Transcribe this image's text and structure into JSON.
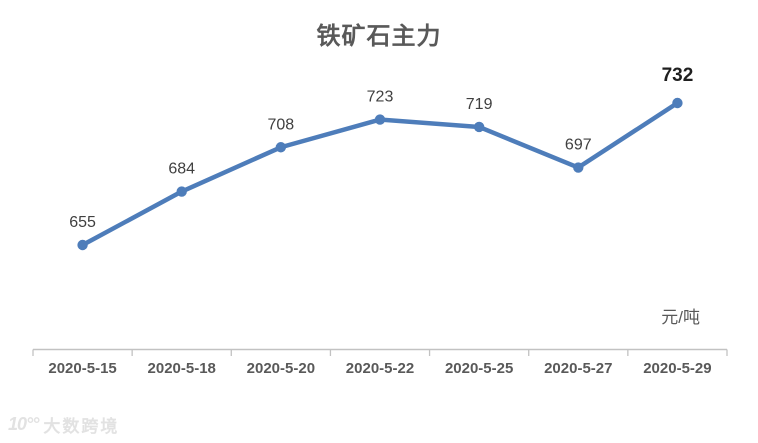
{
  "chart_data": {
    "type": "line",
    "title": "铁矿石主力",
    "categories": [
      "2020-5-15",
      "2020-5-18",
      "2020-5-20",
      "2020-5-22",
      "2020-5-25",
      "2020-5-27",
      "2020-5-29"
    ],
    "values": [
      655,
      684,
      708,
      723,
      719,
      697,
      732
    ],
    "unit_label": "元/吨",
    "xlabel": "",
    "ylabel": "",
    "legend": "none",
    "grid": "off",
    "ylim": [
      640,
      760
    ],
    "colors": {
      "series": "#4e7dba",
      "data_label": "#404040",
      "last_data_label": "#1f1f1f",
      "axis_line": "#c2c2c2",
      "axis_text": "#595959",
      "title": "#595959"
    }
  },
  "watermark": {
    "logo_text": "10°°",
    "brand_text": "大数跨境"
  }
}
